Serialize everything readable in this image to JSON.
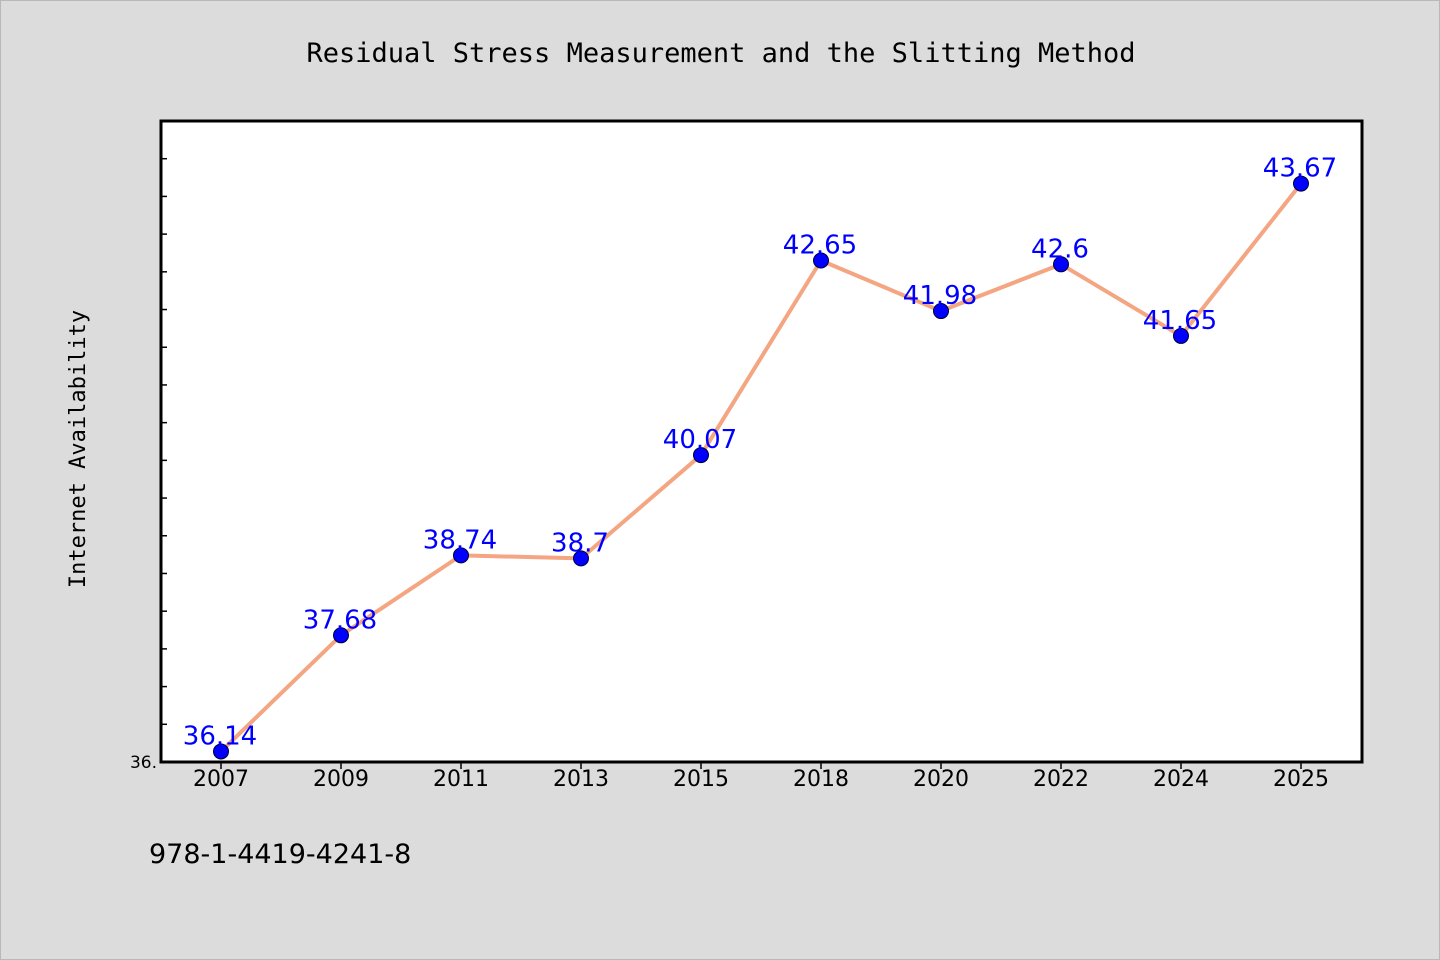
{
  "chart_data": {
    "type": "line",
    "title": "Residual Stress Measurement and the Slitting Method",
    "xlabel": "",
    "ylabel": "Internet Availability",
    "categories": [
      "2007",
      "2009",
      "2011",
      "2013",
      "2015",
      "2018",
      "2020",
      "2022",
      "2024",
      "2025"
    ],
    "series": [
      {
        "values": [
          36.14,
          37.68,
          38.74,
          38.7,
          40.07,
          42.65,
          41.98,
          42.6,
          41.65,
          43.67
        ]
      }
    ],
    "data_labels": [
      "36.14",
      "37.68",
      "38.74",
      "38.7",
      "40.07",
      "42.65",
      "41.98",
      "42.6",
      "41.65",
      "43.67"
    ],
    "ylim": [
      36.0,
      44.5
    ],
    "y_tick_labels": [
      "36."
    ],
    "y_minor_tick_step": 0.5,
    "grid": false,
    "legend": "none",
    "colors": {
      "line": "#f4a582",
      "marker": "#0000ff",
      "data_label": "#0000ff",
      "plot_background": "#ffffff",
      "figure_background": "#dcdcdc"
    }
  },
  "footer": {
    "isbn": "978-1-4419-4241-8"
  }
}
